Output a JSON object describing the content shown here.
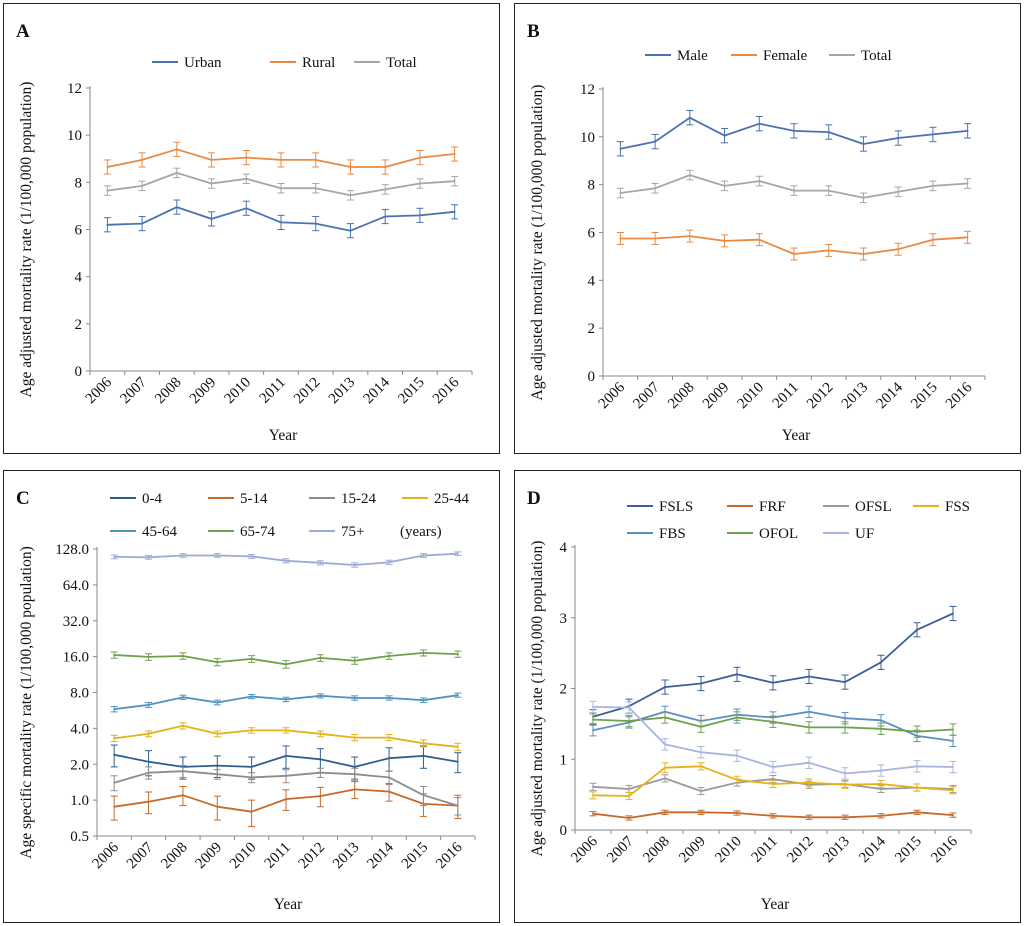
{
  "chart_data": [
    {
      "panel_label": "A",
      "type": "line",
      "title": "",
      "xlabel": "Year",
      "ylabel": "Age adjusted mortality rate (1/100,000 population)",
      "ylim": [
        0,
        12
      ],
      "scale": "linear",
      "yticks": [
        "0",
        "2",
        "4",
        "6",
        "8",
        "10",
        "12"
      ],
      "categories": [
        "2006",
        "2007",
        "2008",
        "2009",
        "2010",
        "2011",
        "2012",
        "2013",
        "2014",
        "2015",
        "2016"
      ],
      "legend": {
        "placement": "top",
        "columns": 3
      },
      "series": [
        {
          "name": "Urban",
          "color": "#4A72B0",
          "values": [
            6.2,
            6.25,
            6.95,
            6.45,
            6.9,
            6.3,
            6.25,
            5.95,
            6.55,
            6.6,
            6.75
          ],
          "errors": [
            0.3,
            0.3,
            0.3,
            0.3,
            0.3,
            0.3,
            0.3,
            0.3,
            0.3,
            0.3,
            0.3
          ]
        },
        {
          "name": "Rural",
          "color": "#E88A45",
          "values": [
            8.65,
            8.95,
            9.4,
            8.95,
            9.05,
            8.95,
            8.95,
            8.65,
            8.65,
            9.05,
            9.2
          ],
          "errors": [
            0.3,
            0.3,
            0.3,
            0.3,
            0.3,
            0.3,
            0.3,
            0.3,
            0.3,
            0.3,
            0.3
          ]
        },
        {
          "name": "Total",
          "color": "#A6A6A6",
          "values": [
            7.65,
            7.85,
            8.4,
            7.95,
            8.15,
            7.75,
            7.75,
            7.45,
            7.7,
            7.95,
            8.05
          ],
          "errors": [
            0.2,
            0.2,
            0.2,
            0.2,
            0.2,
            0.2,
            0.2,
            0.2,
            0.2,
            0.2,
            0.2
          ]
        }
      ]
    },
    {
      "panel_label": "B",
      "type": "line",
      "title": "",
      "xlabel": "Year",
      "ylabel": "Age adjusted mortality rate (1/100,000 population)",
      "ylim": [
        0,
        12
      ],
      "scale": "linear",
      "yticks": [
        "0",
        "2",
        "4",
        "6",
        "8",
        "10",
        "12"
      ],
      "categories": [
        "2006",
        "2007",
        "2008",
        "2009",
        "2010",
        "2011",
        "2012",
        "2013",
        "2014",
        "2015",
        "2016"
      ],
      "legend": {
        "placement": "top",
        "columns": 3
      },
      "series": [
        {
          "name": "Male",
          "color": "#4A72B0",
          "values": [
            9.5,
            9.8,
            10.8,
            10.05,
            10.55,
            10.25,
            10.2,
            9.7,
            9.95,
            10.1,
            10.25
          ],
          "errors": [
            0.3,
            0.3,
            0.3,
            0.3,
            0.3,
            0.3,
            0.3,
            0.3,
            0.3,
            0.3,
            0.3
          ]
        },
        {
          "name": "Female",
          "color": "#E88A45",
          "values": [
            5.75,
            5.75,
            5.85,
            5.65,
            5.7,
            5.1,
            5.25,
            5.1,
            5.3,
            5.7,
            5.8
          ],
          "errors": [
            0.25,
            0.25,
            0.25,
            0.25,
            0.25,
            0.25,
            0.25,
            0.25,
            0.25,
            0.25,
            0.25
          ]
        },
        {
          "name": "Total",
          "color": "#A6A6A6",
          "values": [
            7.65,
            7.85,
            8.4,
            7.95,
            8.15,
            7.75,
            7.75,
            7.45,
            7.7,
            7.95,
            8.05
          ],
          "errors": [
            0.2,
            0.2,
            0.2,
            0.2,
            0.2,
            0.2,
            0.2,
            0.2,
            0.2,
            0.2,
            0.2
          ]
        }
      ]
    },
    {
      "panel_label": "C",
      "type": "line",
      "title": "",
      "xlabel": "Year",
      "ylabel": "Age specific mortality rate (1/100,000 population)",
      "ylim": [
        0.5,
        128
      ],
      "scale": "log2",
      "yticks": [
        "0.5",
        "1.0",
        "2.0",
        "4.0",
        "8.0",
        "16.0",
        "32.0",
        "64.0",
        "128.0"
      ],
      "categories": [
        "2006",
        "2007",
        "2008",
        "2009",
        "2010",
        "2011",
        "2012",
        "2013",
        "2014",
        "2015",
        "2016"
      ],
      "legend": {
        "placement": "top",
        "columns": 4,
        "suffix": "(years)"
      },
      "series": [
        {
          "name": "0-4",
          "color": "#2F5E8E",
          "values": [
            2.4,
            2.1,
            1.9,
            1.95,
            1.9,
            2.35,
            2.2,
            1.9,
            2.25,
            2.35,
            2.1
          ],
          "errors": [
            0.5,
            0.5,
            0.4,
            0.4,
            0.4,
            0.5,
            0.5,
            0.4,
            0.5,
            0.5,
            0.4
          ]
        },
        {
          "name": "5-14",
          "color": "#C66A2C",
          "values": [
            0.88,
            0.97,
            1.1,
            0.88,
            0.8,
            1.02,
            1.08,
            1.23,
            1.18,
            0.93,
            0.9
          ],
          "errors": [
            0.2,
            0.2,
            0.2,
            0.2,
            0.2,
            0.2,
            0.2,
            0.2,
            0.2,
            0.2,
            0.2
          ]
        },
        {
          "name": "15-24",
          "color": "#8C8C8C",
          "values": [
            1.4,
            1.7,
            1.75,
            1.65,
            1.55,
            1.6,
            1.7,
            1.65,
            1.55,
            1.1,
            0.9
          ],
          "errors": [
            0.2,
            0.2,
            0.2,
            0.15,
            0.15,
            0.2,
            0.15,
            0.2,
            0.2,
            0.2,
            0.15
          ]
        },
        {
          "name": "25-44",
          "color": "#E4B21A",
          "values": [
            3.3,
            3.6,
            4.2,
            3.6,
            3.85,
            3.85,
            3.6,
            3.35,
            3.35,
            3.0,
            2.8
          ],
          "errors": [
            0.2,
            0.2,
            0.25,
            0.2,
            0.2,
            0.2,
            0.2,
            0.2,
            0.2,
            0.2,
            0.2
          ]
        },
        {
          "name": "45-64",
          "color": "#4E93C0",
          "values": [
            5.8,
            6.3,
            7.3,
            6.6,
            7.4,
            7.0,
            7.5,
            7.2,
            7.2,
            6.9,
            7.6
          ],
          "errors": [
            0.3,
            0.3,
            0.3,
            0.3,
            0.3,
            0.3,
            0.3,
            0.3,
            0.3,
            0.3,
            0.3
          ]
        },
        {
          "name": "65-74",
          "color": "#6FA04B",
          "values": [
            16.5,
            15.9,
            16.2,
            14.4,
            15.3,
            13.8,
            15.6,
            14.8,
            16.2,
            17.2,
            16.8
          ],
          "errors": [
            1.0,
            1.0,
            1.0,
            1.0,
            1.0,
            1.0,
            1.0,
            1.0,
            1.0,
            1.0,
            1.0
          ]
        },
        {
          "name": "75+",
          "color": "#9EAAD6",
          "values": [
            110,
            109,
            113,
            113,
            111,
            102,
            98,
            94,
            99,
            113,
            117
          ],
          "errors": [
            4,
            4,
            4,
            4,
            4,
            4,
            4,
            4,
            4,
            4,
            4
          ]
        }
      ]
    },
    {
      "panel_label": "D",
      "type": "line",
      "title": "",
      "xlabel": "Year",
      "ylabel": "Age adjusted mortality rate (1/100,000 population)",
      "ylim": [
        0,
        4
      ],
      "scale": "linear",
      "yticks": [
        "0",
        "1",
        "2",
        "3",
        "4"
      ],
      "categories": [
        "2006",
        "2007",
        "2008",
        "2009",
        "2010",
        "2011",
        "2012",
        "2013",
        "2014",
        "2015",
        "2016"
      ],
      "legend": {
        "placement": "top",
        "columns": 4
      },
      "series": [
        {
          "name": "FSLS",
          "color": "#3B5F99",
          "values": [
            1.6,
            1.75,
            2.02,
            2.07,
            2.2,
            2.08,
            2.17,
            2.09,
            2.37,
            2.83,
            3.06
          ],
          "errors": [
            0.1,
            0.1,
            0.1,
            0.1,
            0.1,
            0.1,
            0.1,
            0.1,
            0.1,
            0.1,
            0.1
          ]
        },
        {
          "name": "FRF",
          "color": "#C66A2C",
          "values": [
            0.23,
            0.17,
            0.25,
            0.25,
            0.24,
            0.2,
            0.18,
            0.18,
            0.2,
            0.25,
            0.21
          ],
          "errors": [
            0.03,
            0.03,
            0.03,
            0.03,
            0.03,
            0.03,
            0.03,
            0.03,
            0.03,
            0.03,
            0.03
          ]
        },
        {
          "name": "OFSL",
          "color": "#9A9A9A",
          "values": [
            0.61,
            0.58,
            0.73,
            0.55,
            0.67,
            0.72,
            0.64,
            0.65,
            0.58,
            0.6,
            0.58
          ],
          "errors": [
            0.05,
            0.05,
            0.05,
            0.05,
            0.05,
            0.05,
            0.05,
            0.05,
            0.05,
            0.05,
            0.05
          ]
        },
        {
          "name": "FSS",
          "color": "#E4B21A",
          "values": [
            0.49,
            0.48,
            0.88,
            0.9,
            0.71,
            0.65,
            0.67,
            0.64,
            0.65,
            0.6,
            0.56
          ],
          "errors": [
            0.05,
            0.05,
            0.07,
            0.05,
            0.05,
            0.05,
            0.05,
            0.05,
            0.05,
            0.05,
            0.05
          ]
        },
        {
          "name": "FBS",
          "color": "#5B8FC0",
          "values": [
            1.41,
            1.52,
            1.67,
            1.54,
            1.63,
            1.59,
            1.67,
            1.58,
            1.55,
            1.33,
            1.26
          ],
          "errors": [
            0.08,
            0.08,
            0.08,
            0.08,
            0.08,
            0.08,
            0.08,
            0.08,
            0.08,
            0.08,
            0.08
          ]
        },
        {
          "name": "OFOL",
          "color": "#6FA04B",
          "values": [
            1.56,
            1.54,
            1.59,
            1.46,
            1.59,
            1.53,
            1.45,
            1.45,
            1.43,
            1.39,
            1.42
          ],
          "errors": [
            0.08,
            0.08,
            0.08,
            0.08,
            0.08,
            0.08,
            0.08,
            0.08,
            0.08,
            0.08,
            0.08
          ]
        },
        {
          "name": "UF",
          "color": "#A9B4DE",
          "values": [
            1.74,
            1.73,
            1.21,
            1.1,
            1.05,
            0.89,
            0.95,
            0.8,
            0.84,
            0.9,
            0.89
          ],
          "errors": [
            0.08,
            0.08,
            0.08,
            0.08,
            0.08,
            0.08,
            0.08,
            0.08,
            0.08,
            0.08,
            0.08
          ]
        }
      ]
    }
  ]
}
